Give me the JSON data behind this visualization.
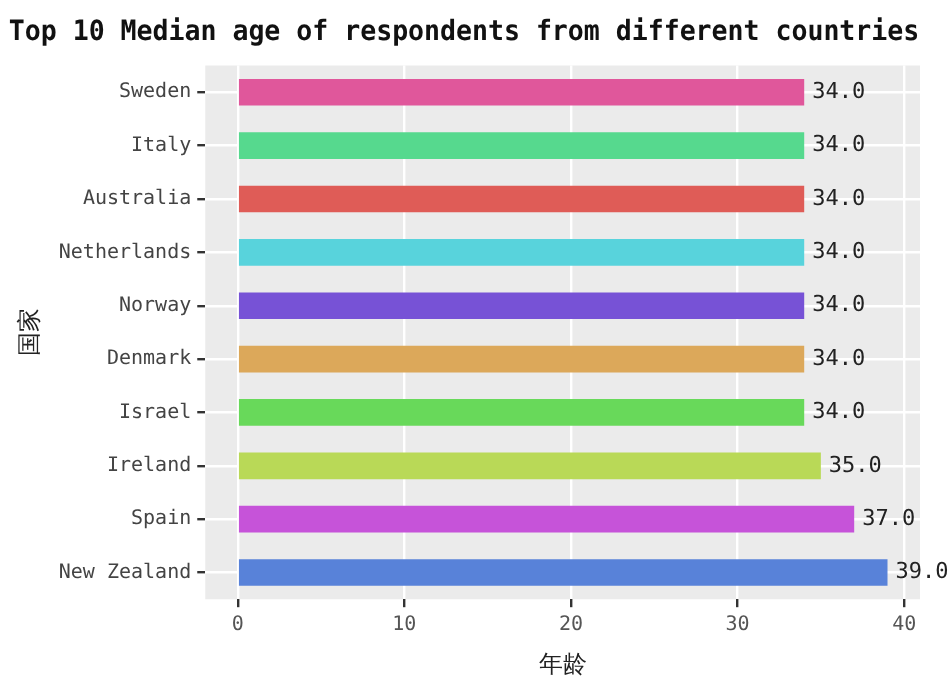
{
  "chart_data": {
    "type": "bar",
    "orientation": "horizontal",
    "title": "Top 10 Median age of respondents from different countries",
    "xlabel": "年龄",
    "ylabel": "国家",
    "categories": [
      "Sweden",
      "Italy",
      "Australia",
      "Netherlands",
      "Norway",
      "Denmark",
      "Israel",
      "Ireland",
      "Spain",
      "New Zealand"
    ],
    "values": [
      34,
      34,
      34,
      34,
      34,
      34,
      34,
      35,
      37,
      39
    ],
    "value_labels": [
      "34.0",
      "34.0",
      "34.0",
      "34.0",
      "34.0",
      "34.0",
      "34.0",
      "35.0",
      "37.0",
      "39.0"
    ],
    "colors": [
      "#e0579b",
      "#56d98e",
      "#df5c57",
      "#58d3dc",
      "#7752d6",
      "#dca85a",
      "#68d95a",
      "#b9d957",
      "#c653d9",
      "#5882d9"
    ],
    "xlim": [
      -1.95,
      40.95
    ],
    "xticks": [
      0,
      10,
      20,
      30,
      40
    ],
    "grid": true,
    "legend": false
  }
}
